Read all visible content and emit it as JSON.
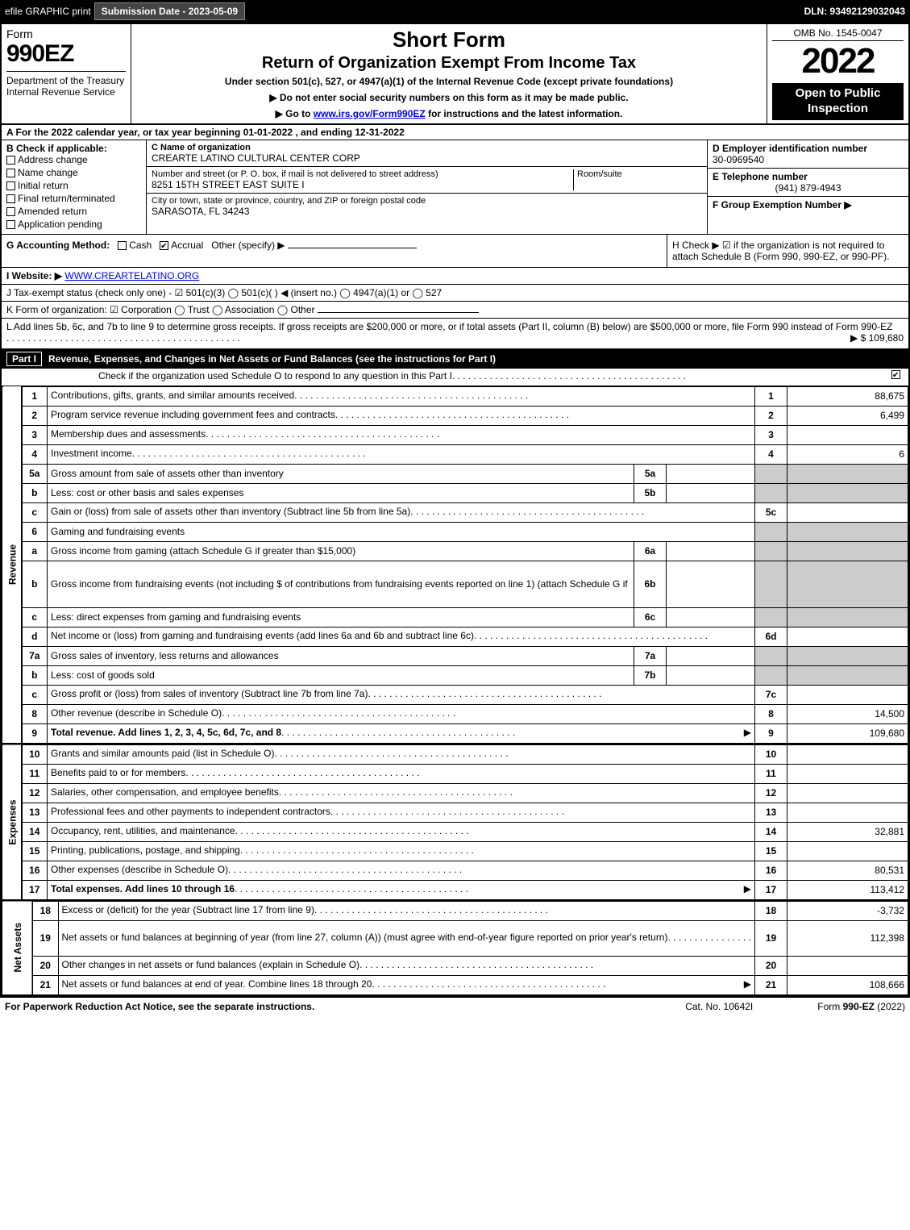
{
  "bar": {
    "efile": "efile GRAPHIC print",
    "submission_label": "Submission Date - 2023-05-09",
    "dln": "DLN: 93492129032043"
  },
  "header": {
    "form_word": "Form",
    "form_no": "990EZ",
    "dept": "Department of the Treasury\nInternal Revenue Service",
    "title1": "Short Form",
    "title2": "Return of Organization Exempt From Income Tax",
    "sub1": "Under section 501(c), 527, or 4947(a)(1) of the Internal Revenue Code (except private foundations)",
    "sub2": "▶ Do not enter social security numbers on this form as it may be made public.",
    "sub3_pre": "▶ Go to ",
    "sub3_link": "www.irs.gov/Form990EZ",
    "sub3_post": " for instructions and the latest information.",
    "omb": "OMB No. 1545-0047",
    "year": "2022",
    "pub": "Open to Public Inspection"
  },
  "A": "A  For the 2022 calendar year, or tax year beginning 01-01-2022 , and ending 12-31-2022",
  "B": {
    "hdr": "B  Check if applicable:",
    "opts": [
      "Address change",
      "Name change",
      "Initial return",
      "Final return/terminated",
      "Amended return",
      "Application pending"
    ]
  },
  "C": {
    "lbl": "C Name of organization",
    "name": "CREARTE LATINO CULTURAL CENTER CORP",
    "addr_lbl": "Number and street (or P. O. box, if mail is not delivered to street address)",
    "addr": "8251 15TH STREET EAST SUITE I",
    "suite_lbl": "Room/suite",
    "city_lbl": "City or town, state or province, country, and ZIP or foreign postal code",
    "city": "SARASOTA, FL  34243"
  },
  "D": {
    "ein_lbl": "D Employer identification number",
    "ein": "30-0969540",
    "tel_lbl": "E Telephone number",
    "tel": "(941) 879-4943",
    "grp_lbl": "F Group Exemption Number  ▶"
  },
  "G": {
    "lbl": "G Accounting Method:",
    "cash": "Cash",
    "accrual": "Accrual",
    "other": "Other (specify) ▶"
  },
  "H": "H  Check ▶ ☑ if the organization is not required to attach Schedule B (Form 990, 990-EZ, or 990-PF).",
  "I": {
    "lbl": "I Website: ▶",
    "url": "WWW.CREARTELATINO.ORG"
  },
  "J": "J Tax-exempt status (check only one) - ☑ 501(c)(3)  ◯ 501(c)(  ) ◀ (insert no.)  ◯ 4947(a)(1) or  ◯ 527",
  "K": "K Form of organization:  ☑ Corporation  ◯ Trust  ◯ Association  ◯ Other",
  "L": {
    "text": "L Add lines 5b, 6c, and 7b to line 9 to determine gross receipts. If gross receipts are $200,000 or more, or if total assets (Part II, column (B) below) are $500,000 or more, file Form 990 instead of Form 990-EZ",
    "amt": "▶ $ 109,680"
  },
  "part1": {
    "label": "Part I",
    "title": "Revenue, Expenses, and Changes in Net Assets or Fund Balances (see the instructions for Part I)",
    "check": "Check if the organization used Schedule O to respond to any question in this Part I"
  },
  "side": {
    "rev": "Revenue",
    "exp": "Expenses",
    "na": "Net Assets"
  },
  "lines": [
    {
      "n": "1",
      "d": "Contributions, gifts, grants, and similar amounts received",
      "ln": "1",
      "v": "88,675"
    },
    {
      "n": "2",
      "d": "Program service revenue including government fees and contracts",
      "ln": "2",
      "v": "6,499"
    },
    {
      "n": "3",
      "d": "Membership dues and assessments",
      "ln": "3",
      "v": ""
    },
    {
      "n": "4",
      "d": "Investment income",
      "ln": "4",
      "v": "6"
    },
    {
      "n": "5a",
      "d": "Gross amount from sale of assets other than inventory",
      "sub": "5a",
      "sv": "",
      "grey": true
    },
    {
      "n": "b",
      "d": "Less: cost or other basis and sales expenses",
      "sub": "5b",
      "sv": "",
      "grey": true
    },
    {
      "n": "c",
      "d": "Gain or (loss) from sale of assets other than inventory (Subtract line 5b from line 5a)",
      "ln": "5c",
      "v": ""
    },
    {
      "n": "6",
      "d": "Gaming and fundraising events",
      "grey": true,
      "noln": true
    },
    {
      "n": "a",
      "d": "Gross income from gaming (attach Schedule G if greater than $15,000)",
      "sub": "6a",
      "sv": "",
      "grey": true
    },
    {
      "n": "b",
      "d": "Gross income from fundraising events (not including $                     of contributions from fundraising events reported on line 1) (attach Schedule G if the sum of such gross income and contributions exceeds $15,000)",
      "sub": "6b",
      "sv": "",
      "grey": true,
      "tall": true
    },
    {
      "n": "c",
      "d": "Less: direct expenses from gaming and fundraising events",
      "sub": "6c",
      "sv": "",
      "grey": true
    },
    {
      "n": "d",
      "d": "Net income or (loss) from gaming and fundraising events (add lines 6a and 6b and subtract line 6c)",
      "ln": "6d",
      "v": ""
    },
    {
      "n": "7a",
      "d": "Gross sales of inventory, less returns and allowances",
      "sub": "7a",
      "sv": "",
      "grey": true
    },
    {
      "n": "b",
      "d": "Less: cost of goods sold",
      "sub": "7b",
      "sv": "",
      "grey": true
    },
    {
      "n": "c",
      "d": "Gross profit or (loss) from sales of inventory (Subtract line 7b from line 7a)",
      "ln": "7c",
      "v": ""
    },
    {
      "n": "8",
      "d": "Other revenue (describe in Schedule O)",
      "ln": "8",
      "v": "14,500"
    },
    {
      "n": "9",
      "d": "Total revenue. Add lines 1, 2, 3, 4, 5c, 6d, 7c, and 8",
      "ln": "9",
      "v": "109,680",
      "bold": true,
      "arrow": true
    }
  ],
  "exp_lines": [
    {
      "n": "10",
      "d": "Grants and similar amounts paid (list in Schedule O)",
      "ln": "10",
      "v": ""
    },
    {
      "n": "11",
      "d": "Benefits paid to or for members",
      "ln": "11",
      "v": ""
    },
    {
      "n": "12",
      "d": "Salaries, other compensation, and employee benefits",
      "ln": "12",
      "v": ""
    },
    {
      "n": "13",
      "d": "Professional fees and other payments to independent contractors",
      "ln": "13",
      "v": ""
    },
    {
      "n": "14",
      "d": "Occupancy, rent, utilities, and maintenance",
      "ln": "14",
      "v": "32,881"
    },
    {
      "n": "15",
      "d": "Printing, publications, postage, and shipping",
      "ln": "15",
      "v": ""
    },
    {
      "n": "16",
      "d": "Other expenses (describe in Schedule O)",
      "ln": "16",
      "v": "80,531"
    },
    {
      "n": "17",
      "d": "Total expenses. Add lines 10 through 16",
      "ln": "17",
      "v": "113,412",
      "bold": true,
      "arrow": true
    }
  ],
  "na_lines": [
    {
      "n": "18",
      "d": "Excess or (deficit) for the year (Subtract line 17 from line 9)",
      "ln": "18",
      "v": "-3,732"
    },
    {
      "n": "19",
      "d": "Net assets or fund balances at beginning of year (from line 27, column (A)) (must agree with end-of-year figure reported on prior year's return)",
      "ln": "19",
      "v": "112,398",
      "tall": true
    },
    {
      "n": "20",
      "d": "Other changes in net assets or fund balances (explain in Schedule O)",
      "ln": "20",
      "v": ""
    },
    {
      "n": "21",
      "d": "Net assets or fund balances at end of year. Combine lines 18 through 20",
      "ln": "21",
      "v": "108,666",
      "arrow": true
    }
  ],
  "footer": {
    "f1": "For Paperwork Reduction Act Notice, see the separate instructions.",
    "f2": "Cat. No. 10642I",
    "f3a": "Form ",
    "f3b": "990-EZ",
    "f3c": " (2022)"
  }
}
